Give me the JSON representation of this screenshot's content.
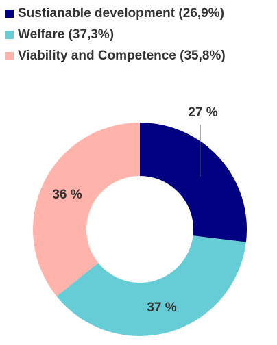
{
  "chart_data": {
    "type": "pie",
    "variant": "donut",
    "categories": [
      "Sustianable development",
      "Welfare",
      "Viability and Competence"
    ],
    "values": [
      26.9,
      37.3,
      35.8
    ],
    "legend_labels": [
      "Sustianable development (26,9%)",
      "Welfare (37,3%)",
      "Viability and Competence (35,8%)"
    ],
    "slice_labels": [
      "27 %",
      "37 %",
      "36 %"
    ],
    "colors": [
      "#000080",
      "#66CCD6",
      "#FFB3AB"
    ],
    "legend_position": "top-left",
    "start_angle": "12 o'clock, clockwise"
  }
}
